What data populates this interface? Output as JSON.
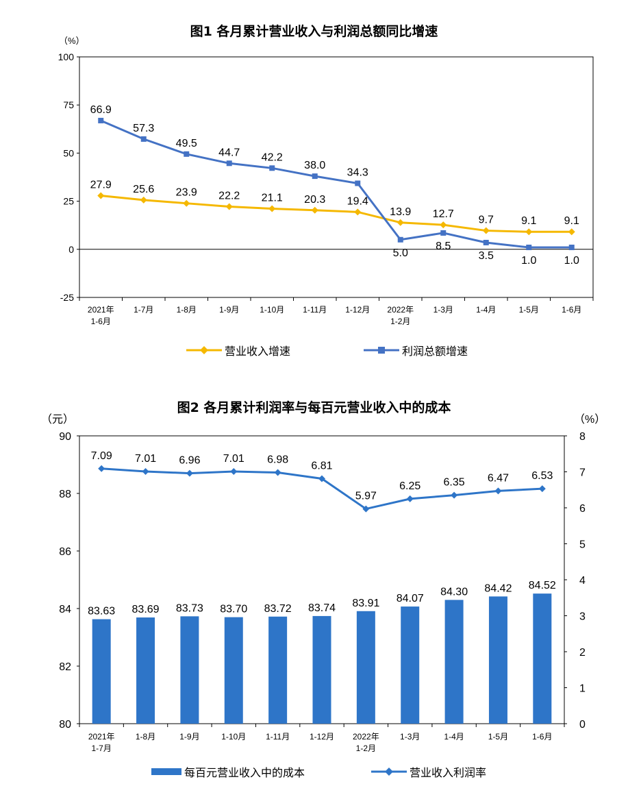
{
  "chart_data": [
    {
      "type": "line",
      "title": "图1  各月累计营业收入与利润总额同比增速",
      "y_unit": "（%）",
      "ylim": [
        -25,
        100
      ],
      "yticks": [
        "100",
        "75",
        "50",
        "25",
        "0",
        "-25"
      ],
      "ytick_values": [
        100,
        75,
        50,
        25,
        0,
        -25
      ],
      "categories": [
        "2021年 1-6月",
        "1-7月",
        "1-8月",
        "1-9月",
        "1-10月",
        "1-11月",
        "1-12月",
        "2022年 1-2月",
        "1-3月",
        "1-4月",
        "1-5月",
        "1-6月"
      ],
      "category_lines": [
        [
          "2021年",
          "1-6月"
        ],
        [
          "1-7月"
        ],
        [
          "1-8月"
        ],
        [
          "1-9月"
        ],
        [
          "1-10月"
        ],
        [
          "1-11月"
        ],
        [
          "1-12月"
        ],
        [
          "2022年",
          "1-2月"
        ],
        [
          "1-3月"
        ],
        [
          "1-4月"
        ],
        [
          "1-5月"
        ],
        [
          "1-6月"
        ]
      ],
      "series": [
        {
          "name": "营业收入增速",
          "color": "#F5B800",
          "marker": "diamond",
          "values": [
            27.9,
            25.6,
            23.9,
            22.2,
            21.1,
            20.3,
            19.4,
            13.9,
            12.7,
            9.7,
            9.1,
            9.1
          ],
          "labels": [
            "27.9",
            "25.6",
            "23.9",
            "22.2",
            "21.1",
            "20.3",
            "19.4",
            "13.9",
            "12.7",
            "9.7",
            "9.1",
            "9.1"
          ]
        },
        {
          "name": "利润总额增速",
          "color": "#4472C4",
          "marker": "square",
          "values": [
            66.9,
            57.3,
            49.5,
            44.7,
            42.2,
            38.0,
            34.3,
            5.0,
            8.5,
            3.5,
            1.0,
            1.0
          ],
          "labels": [
            "66.9",
            "57.3",
            "49.5",
            "44.7",
            "42.2",
            "38.0",
            "34.3",
            "5.0",
            "8.5",
            "3.5",
            "1.0",
            "1.0"
          ]
        }
      ],
      "grid": false,
      "legend": "bottom"
    },
    {
      "type": "bar+line",
      "title": "图2  各月累计利润率与每百元营业收入中的成本",
      "left_unit": "（元）",
      "right_unit": "（%）",
      "ylim_left": [
        80,
        90
      ],
      "yticks_left": [
        "90",
        "88",
        "86",
        "84",
        "82",
        "80"
      ],
      "ytick_values_left": [
        90,
        88,
        86,
        84,
        82,
        80
      ],
      "ylim_right": [
        0,
        8
      ],
      "yticks_right": [
        "8",
        "7",
        "6",
        "5",
        "4",
        "3",
        "2",
        "1",
        "0"
      ],
      "ytick_values_right": [
        8,
        7,
        6,
        5,
        4,
        3,
        2,
        1,
        0
      ],
      "categories": [
        "2021年 1-7月",
        "1-8月",
        "1-9月",
        "1-10月",
        "1-11月",
        "1-12月",
        "2022年 1-2月",
        "1-3月",
        "1-4月",
        "1-5月",
        "1-6月"
      ],
      "category_lines": [
        [
          "2021年",
          "1-7月"
        ],
        [
          "1-8月"
        ],
        [
          "1-9月"
        ],
        [
          "1-10月"
        ],
        [
          "1-11月"
        ],
        [
          "1-12月"
        ],
        [
          "2022年",
          "1-2月"
        ],
        [
          "1-3月"
        ],
        [
          "1-4月"
        ],
        [
          "1-5月"
        ],
        [
          "1-6月"
        ]
      ],
      "bars": {
        "name": "每百元营业收入中的成本",
        "color": "#2E75C8",
        "axis": "left",
        "values": [
          83.63,
          83.69,
          83.73,
          83.7,
          83.72,
          83.74,
          83.91,
          84.07,
          84.3,
          84.42,
          84.52
        ],
        "labels": [
          "83.63",
          "83.69",
          "83.73",
          "83.70",
          "83.72",
          "83.74",
          "83.91",
          "84.07",
          "84.30",
          "84.42",
          "84.52"
        ]
      },
      "line": {
        "name": "营业收入利润率",
        "color": "#2E75C8",
        "axis": "right",
        "marker": "diamond",
        "values": [
          7.09,
          7.01,
          6.96,
          7.01,
          6.98,
          6.81,
          5.97,
          6.25,
          6.35,
          6.47,
          6.53
        ],
        "labels": [
          "7.09",
          "7.01",
          "6.96",
          "7.01",
          "6.98",
          "6.81",
          "5.97",
          "6.25",
          "6.35",
          "6.47",
          "6.53"
        ]
      },
      "grid": false,
      "legend": "bottom"
    }
  ]
}
